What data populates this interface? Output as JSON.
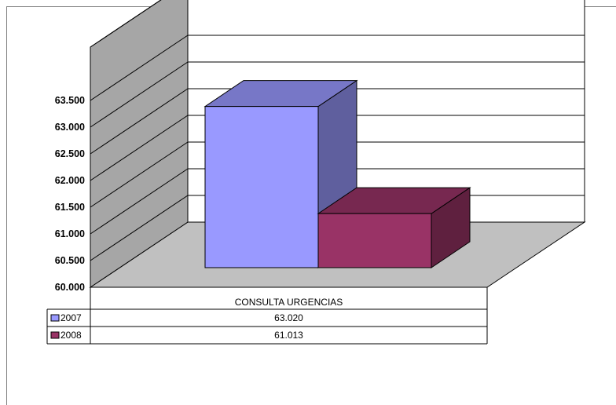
{
  "chart_data": {
    "type": "bar",
    "style": "3d-column-with-data-table",
    "categories": [
      "CONSULTA URGENCIAS"
    ],
    "series": [
      {
        "name": "2007",
        "values": [
          63020
        ],
        "value_label": "63.020",
        "color": "#9999ff"
      },
      {
        "name": "2008",
        "values": [
          61013
        ],
        "value_label": "61.013",
        "color": "#993366"
      }
    ],
    "ylim": [
      60000,
      64500
    ],
    "y_ticks": [
      {
        "value": 60000,
        "label": "60.000"
      },
      {
        "value": 60500,
        "label": "60.500"
      },
      {
        "value": 61000,
        "label": "61.000"
      },
      {
        "value": 61500,
        "label": "61.500"
      },
      {
        "value": 62000,
        "label": "62.000"
      },
      {
        "value": 62500,
        "label": "62.500"
      },
      {
        "value": 63000,
        "label": "63.000"
      },
      {
        "value": 63500,
        "label": "63.500"
      }
    ],
    "grid": true,
    "legend": "data-table-left"
  }
}
